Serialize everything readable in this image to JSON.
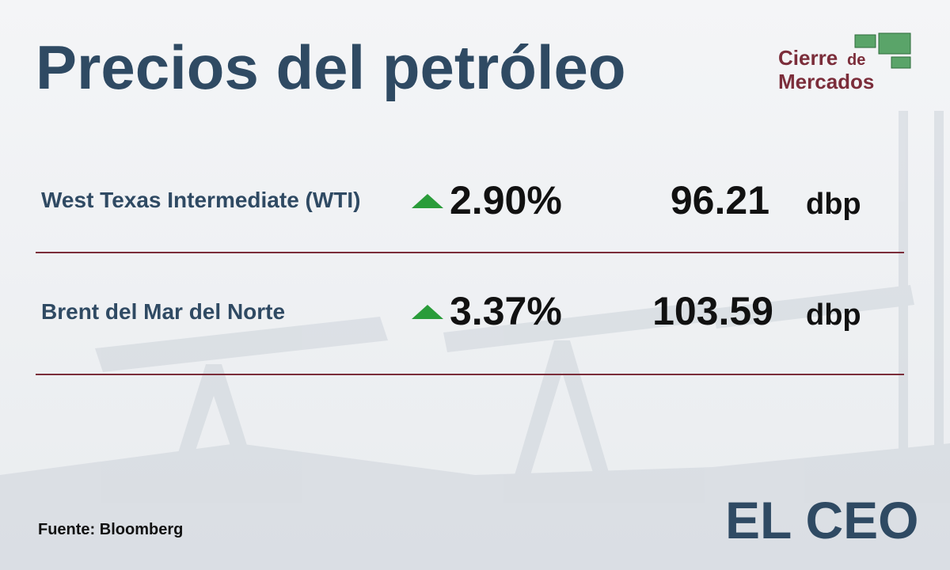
{
  "header": {
    "title": "Precios del petróleo",
    "badge": {
      "line1": "Cierre",
      "connector": "de",
      "line2": "Mercados"
    }
  },
  "table": {
    "rows": [
      {
        "name": "West Texas Intermediate (WTI)",
        "change": "2.90%",
        "price": "96.21",
        "unit": "dbp"
      },
      {
        "name": "Brent del Mar del Norte",
        "change": "3.37%",
        "price": "103.59",
        "unit": "dbp"
      }
    ]
  },
  "footer": {
    "source": "Fuente: Bloomberg",
    "brand": "EL CEO"
  }
}
